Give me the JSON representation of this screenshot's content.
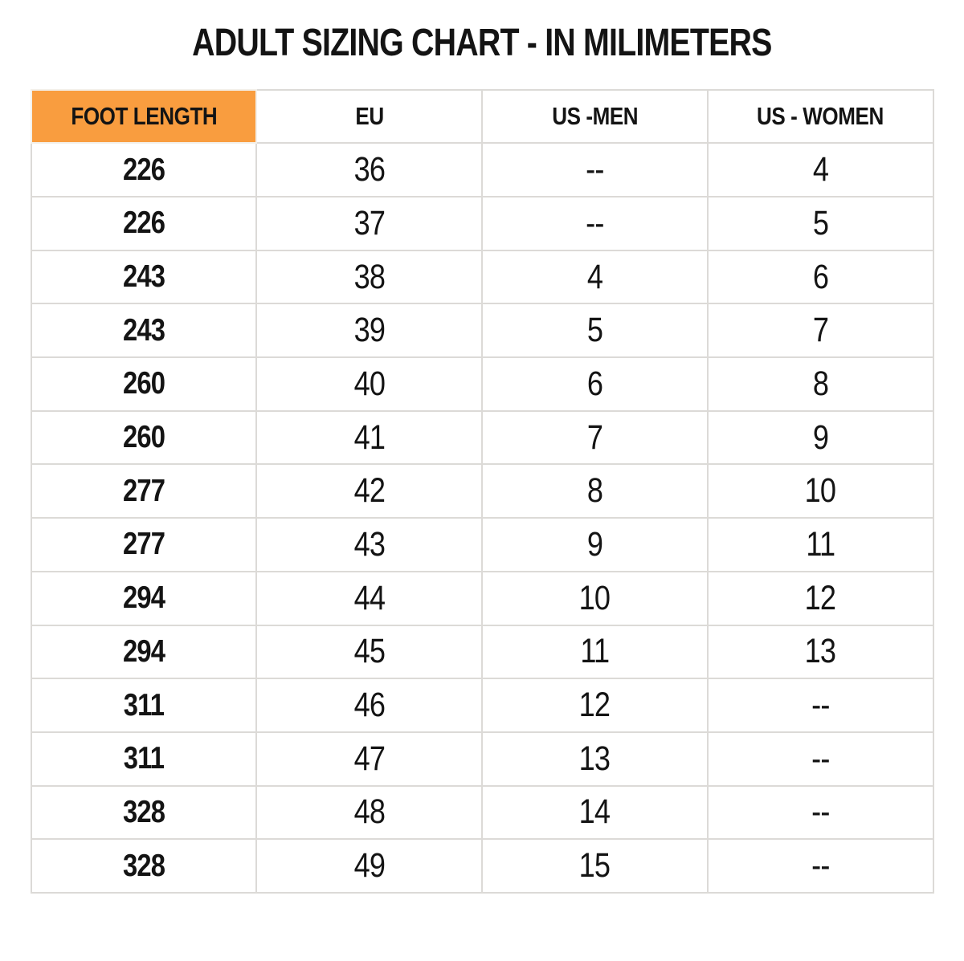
{
  "title": "ADULT SIZING CHART - IN MILIMETERS",
  "theme": {
    "accent_orange": "#F99D3F",
    "grid_line": "#DCDAD7",
    "grid_line_on_orange": "#F3F0EA",
    "text_color": "#141414",
    "background": "#FFFFFF"
  },
  "chart_data": {
    "type": "table",
    "title": "ADULT SIZING CHART - IN MILIMETERS",
    "columns": [
      "FOOT LENGTH",
      "EU",
      "US -MEN",
      "US - WOMEN"
    ],
    "rows": [
      [
        "226",
        "36",
        "--",
        "4"
      ],
      [
        "226",
        "37",
        "--",
        "5"
      ],
      [
        "243",
        "38",
        "4",
        "6"
      ],
      [
        "243",
        "39",
        "5",
        "7"
      ],
      [
        "260",
        "40",
        "6",
        "8"
      ],
      [
        "260",
        "41",
        "7",
        "9"
      ],
      [
        "277",
        "42",
        "8",
        "10"
      ],
      [
        "277",
        "43",
        "9",
        "11"
      ],
      [
        "294",
        "44",
        "10",
        "12"
      ],
      [
        "294",
        "45",
        "11",
        "13"
      ],
      [
        "311",
        "46",
        "12",
        "--"
      ],
      [
        "311",
        "47",
        "13",
        "--"
      ],
      [
        "328",
        "48",
        "14",
        "--"
      ],
      [
        "328",
        "49",
        "15",
        "--"
      ]
    ],
    "layout": {
      "header_fill_column_0": "#F99D3F",
      "body_fill_column_0": "#F99D3F",
      "other_cells_fill": "#FFFFFF",
      "grid": "on",
      "units": "millimeters (foot length)"
    }
  }
}
